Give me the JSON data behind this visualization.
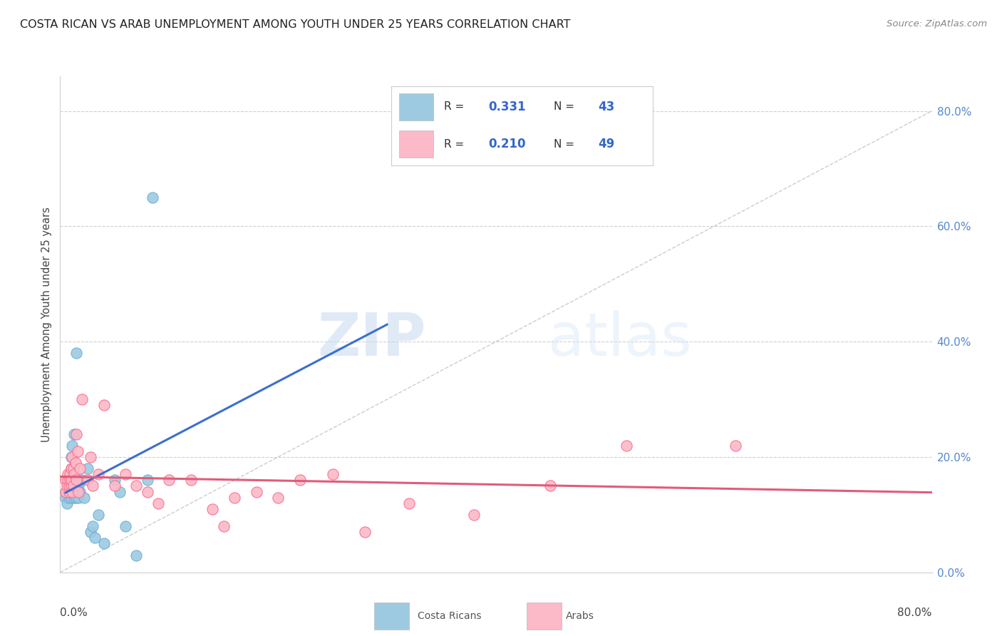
{
  "title": "COSTA RICAN VS ARAB UNEMPLOYMENT AMONG YOUTH UNDER 25 YEARS CORRELATION CHART",
  "source": "Source: ZipAtlas.com",
  "ylabel": "Unemployment Among Youth under 25 years",
  "ytick_values": [
    0.0,
    0.2,
    0.4,
    0.6,
    0.8
  ],
  "ytick_labels": [
    "0.0%",
    "20.0%",
    "40.0%",
    "60.0%",
    "80.0%"
  ],
  "xlim": [
    0,
    0.8
  ],
  "ylim": [
    0.0,
    0.86
  ],
  "watermark_zip": "ZIP",
  "watermark_atlas": "atlas",
  "legend_r1": "R = 0.331",
  "legend_n1": "N = 43",
  "legend_r2": "R = 0.210",
  "legend_n2": "N = 49",
  "costa_rican_color": "#9ecae1",
  "arab_color": "#fcb9c8",
  "cr_edge_color": "#6baed6",
  "arab_edge_color": "#fb6a8a",
  "trend_color_cr": "#3c6fcd",
  "trend_color_arab": "#e05c7a",
  "diagonal_color": "#c0c0c0",
  "grid_color": "#d0d0d0",
  "costa_rican_x": [
    0.005,
    0.005,
    0.006,
    0.007,
    0.007,
    0.008,
    0.008,
    0.009,
    0.009,
    0.009,
    0.01,
    0.01,
    0.01,
    0.01,
    0.011,
    0.011,
    0.012,
    0.012,
    0.013,
    0.013,
    0.013,
    0.014,
    0.015,
    0.015,
    0.015,
    0.016,
    0.017,
    0.017,
    0.018,
    0.02,
    0.022,
    0.025,
    0.028,
    0.03,
    0.032,
    0.035,
    0.04,
    0.05,
    0.055,
    0.06,
    0.07,
    0.08,
    0.085
  ],
  "costa_rican_y": [
    0.13,
    0.14,
    0.12,
    0.14,
    0.15,
    0.13,
    0.16,
    0.14,
    0.15,
    0.16,
    0.13,
    0.15,
    0.18,
    0.2,
    0.15,
    0.22,
    0.14,
    0.16,
    0.13,
    0.15,
    0.24,
    0.14,
    0.13,
    0.15,
    0.38,
    0.14,
    0.13,
    0.15,
    0.14,
    0.16,
    0.13,
    0.18,
    0.07,
    0.08,
    0.06,
    0.1,
    0.05,
    0.16,
    0.14,
    0.08,
    0.03,
    0.16,
    0.65
  ],
  "arab_x": [
    0.005,
    0.005,
    0.006,
    0.007,
    0.007,
    0.008,
    0.008,
    0.009,
    0.009,
    0.01,
    0.01,
    0.01,
    0.011,
    0.011,
    0.012,
    0.012,
    0.013,
    0.014,
    0.015,
    0.015,
    0.016,
    0.017,
    0.018,
    0.02,
    0.025,
    0.028,
    0.03,
    0.035,
    0.04,
    0.05,
    0.06,
    0.07,
    0.08,
    0.09,
    0.1,
    0.12,
    0.14,
    0.15,
    0.16,
    0.18,
    0.2,
    0.22,
    0.25,
    0.28,
    0.32,
    0.38,
    0.45,
    0.52,
    0.62
  ],
  "arab_y": [
    0.14,
    0.16,
    0.15,
    0.16,
    0.17,
    0.14,
    0.15,
    0.16,
    0.17,
    0.15,
    0.18,
    0.16,
    0.14,
    0.2,
    0.15,
    0.18,
    0.17,
    0.19,
    0.16,
    0.24,
    0.21,
    0.14,
    0.18,
    0.3,
    0.16,
    0.2,
    0.15,
    0.17,
    0.29,
    0.15,
    0.17,
    0.15,
    0.14,
    0.12,
    0.16,
    0.16,
    0.11,
    0.08,
    0.13,
    0.14,
    0.13,
    0.16,
    0.17,
    0.07,
    0.12,
    0.1,
    0.15,
    0.22,
    0.22
  ]
}
